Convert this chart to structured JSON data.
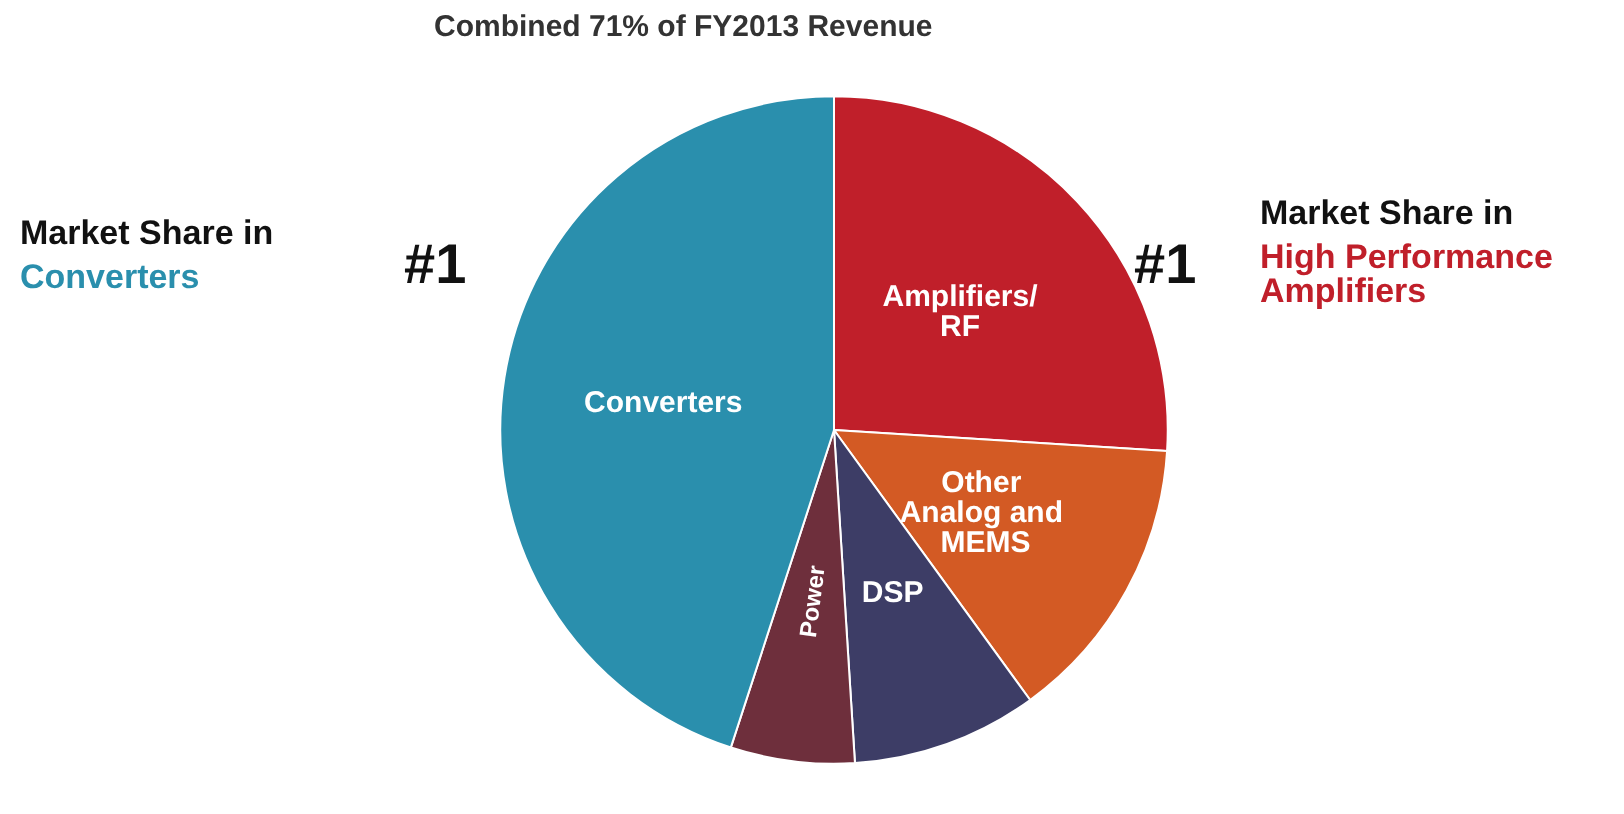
{
  "chart_data": {
    "type": "pie",
    "categories": [
      "Amplifiers/RF",
      "Other Analog and MEMS",
      "DSP",
      "Power",
      "Converters"
    ],
    "values": [
      26,
      14,
      9,
      6,
      45
    ],
    "colors": [
      "#c01f2a",
      "#d35a24",
      "#3d3d66",
      "#6e2f3c",
      "#2a8fad"
    ],
    "annotations": [
      "Combined 71% of FY2013 Revenue",
      "#1",
      "Market Share in",
      "Converters",
      "#1",
      "Market Share in",
      "High Performance Amplifiers"
    ],
    "legend": false
  }
}
